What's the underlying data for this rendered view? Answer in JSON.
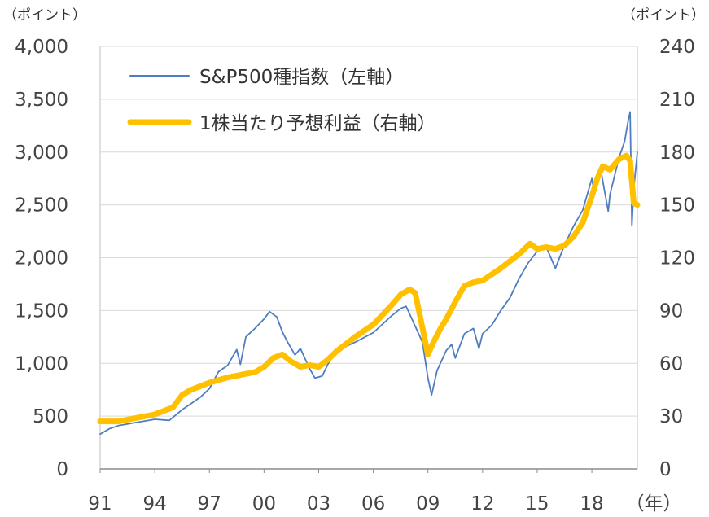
{
  "units": {
    "left": "（ポイント）",
    "right": "（ポイント）",
    "x": "（年）"
  },
  "chart_data": {
    "type": "line",
    "title": "",
    "xlabel": "",
    "ylabel": "",
    "grid": "horizontal",
    "legend_position": "top-left",
    "x_range": [
      1991.0,
      2020.5
    ],
    "x_ticks": [
      {
        "value": 1991,
        "label": "91"
      },
      {
        "value": 1994,
        "label": "94"
      },
      {
        "value": 1997,
        "label": "97"
      },
      {
        "value": 2000,
        "label": "00"
      },
      {
        "value": 2003,
        "label": "03"
      },
      {
        "value": 2006,
        "label": "06"
      },
      {
        "value": 2009,
        "label": "09"
      },
      {
        "value": 2012,
        "label": "12"
      },
      {
        "value": 2015,
        "label": "15"
      },
      {
        "value": 2018,
        "label": "18"
      }
    ],
    "y_left": {
      "range": [
        0,
        4000
      ],
      "ticks": [
        {
          "value": 0,
          "label": "0"
        },
        {
          "value": 500,
          "label": "500"
        },
        {
          "value": 1000,
          "label": "1,000"
        },
        {
          "value": 1500,
          "label": "1,500"
        },
        {
          "value": 2000,
          "label": "2,000"
        },
        {
          "value": 2500,
          "label": "2,500"
        },
        {
          "value": 3000,
          "label": "3,000"
        },
        {
          "value": 3500,
          "label": "3,500"
        },
        {
          "value": 4000,
          "label": "4,000"
        }
      ]
    },
    "y_right": {
      "range": [
        0,
        240
      ],
      "ticks": [
        {
          "value": 0,
          "label": "0"
        },
        {
          "value": 30,
          "label": "30"
        },
        {
          "value": 60,
          "label": "60"
        },
        {
          "value": 90,
          "label": "90"
        },
        {
          "value": 120,
          "label": "120"
        },
        {
          "value": 150,
          "label": "150"
        },
        {
          "value": 180,
          "label": "180"
        },
        {
          "value": 210,
          "label": "210"
        },
        {
          "value": 240,
          "label": "240"
        }
      ]
    },
    "series": [
      {
        "name": "S&P500種指数（左軸）",
        "axis": "left",
        "color": "#4f7dbf",
        "style": "thin",
        "x": [
          1991.0,
          1991.5,
          1992.0,
          1993.0,
          1994.0,
          1994.8,
          1995.5,
          1996.0,
          1996.5,
          1997.0,
          1997.5,
          1998.0,
          1998.5,
          1998.7,
          1999.0,
          1999.5,
          2000.0,
          2000.3,
          2000.7,
          2001.0,
          2001.3,
          2001.7,
          2002.0,
          2002.5,
          2002.8,
          2003.2,
          2003.5,
          2004.0,
          2005.0,
          2006.0,
          2007.0,
          2007.5,
          2007.8,
          2008.3,
          2008.7,
          2009.0,
          2009.2,
          2009.5,
          2010.0,
          2010.3,
          2010.5,
          2011.0,
          2011.5,
          2011.8,
          2012.0,
          2012.5,
          2013.0,
          2013.5,
          2014.0,
          2014.5,
          2015.0,
          2015.5,
          2016.0,
          2016.5,
          2017.0,
          2017.5,
          2018.0,
          2018.1,
          2018.5,
          2018.9,
          2019.0,
          2019.5,
          2019.8,
          2020.0,
          2020.1,
          2020.2,
          2020.3,
          2020.5
        ],
        "y": [
          330,
          380,
          410,
          440,
          470,
          460,
          560,
          620,
          680,
          760,
          920,
          980,
          1130,
          990,
          1250,
          1330,
          1420,
          1490,
          1440,
          1300,
          1200,
          1080,
          1140,
          950,
          860,
          880,
          990,
          1120,
          1200,
          1290,
          1450,
          1520,
          1540,
          1350,
          1200,
          860,
          700,
          930,
          1120,
          1180,
          1050,
          1280,
          1330,
          1140,
          1280,
          1360,
          1500,
          1620,
          1800,
          1950,
          2060,
          2100,
          1900,
          2120,
          2300,
          2450,
          2750,
          2650,
          2820,
          2440,
          2600,
          2950,
          3100,
          3300,
          3380,
          2300,
          2650,
          3000
        ]
      },
      {
        "name": "1株当たり予想利益（右軸）",
        "axis": "right",
        "color": "#ffc000",
        "style": "thick",
        "x": [
          1991.0,
          1992.0,
          1993.0,
          1994.0,
          1995.0,
          1995.5,
          1996.0,
          1997.0,
          1998.0,
          1998.5,
          1999.0,
          1999.5,
          2000.0,
          2000.5,
          2001.0,
          2001.5,
          2002.0,
          2002.5,
          2003.0,
          2003.5,
          2004.0,
          2005.0,
          2006.0,
          2007.0,
          2007.5,
          2008.0,
          2008.3,
          2008.6,
          2009.0,
          2009.3,
          2009.7,
          2010.0,
          2010.5,
          2011.0,
          2011.5,
          2012.0,
          2013.0,
          2014.0,
          2014.6,
          2015.0,
          2015.5,
          2016.0,
          2016.5,
          2017.0,
          2017.5,
          2018.0,
          2018.3,
          2018.6,
          2019.0,
          2019.5,
          2019.9,
          2020.1,
          2020.3,
          2020.5
        ],
        "y": [
          27,
          27,
          29,
          31,
          35,
          42,
          45,
          49,
          52,
          53,
          54,
          55,
          58,
          63,
          65,
          61,
          58,
          59,
          58,
          62,
          67,
          75,
          82,
          93,
          99,
          102,
          100,
          85,
          65,
          72,
          80,
          85,
          95,
          104,
          106,
          107,
          114,
          122,
          128,
          125,
          126,
          125,
          127,
          132,
          140,
          155,
          165,
          172,
          170,
          176,
          178,
          175,
          151,
          150
        ]
      }
    ]
  }
}
